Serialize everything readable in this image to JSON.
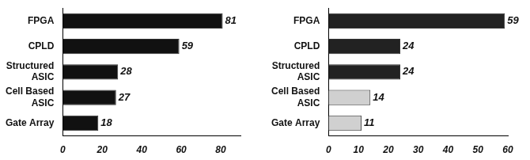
{
  "chart_data": [
    {
      "type": "bar",
      "orientation": "horizontal",
      "categories": [
        "FPGA",
        "CPLD",
        "Structured ASIC",
        "Cell Based ASIC",
        "Gate Array"
      ],
      "values": [
        81,
        59,
        28,
        27,
        18
      ],
      "color": "#111111",
      "xlim": [
        0,
        90
      ],
      "xticks": [
        0,
        20,
        40,
        60,
        80
      ],
      "grid": false,
      "data_labels": true
    },
    {
      "type": "bar",
      "orientation": "horizontal",
      "categories": [
        "FPGA",
        "CPLD",
        "Structured ASIC",
        "Cell Based ASIC",
        "Gate Array"
      ],
      "values": [
        59,
        24,
        24,
        14,
        11
      ],
      "colors": [
        "#222222",
        "#222222",
        "#222222",
        "#d0d0d0",
        "#d0d0d0"
      ],
      "xlim": [
        0,
        60
      ],
      "xticks": [
        0,
        10,
        20,
        30,
        40,
        50,
        60
      ],
      "grid": false,
      "data_labels": true
    }
  ]
}
